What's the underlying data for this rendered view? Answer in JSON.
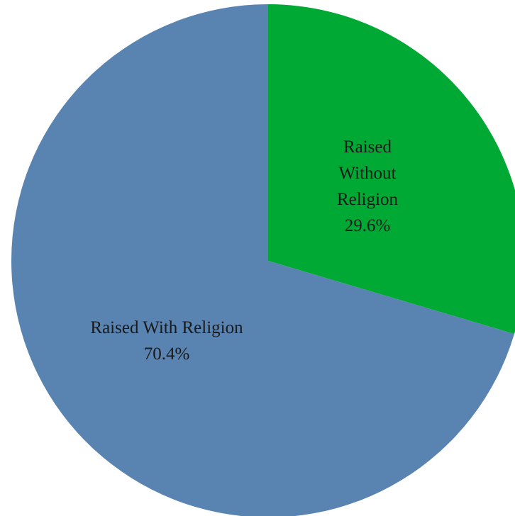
{
  "chart_data": {
    "type": "pie",
    "title": "",
    "slices": [
      {
        "label_lines": [
          "Raised",
          "Without",
          "Religion"
        ],
        "percent_label": "29.6%",
        "value": 29.6,
        "color": "#00a934"
      },
      {
        "label_lines": [
          "Raised With Religion"
        ],
        "percent_label": "70.4%",
        "value": 70.4,
        "color": "#5983b0"
      }
    ],
    "start_angle": "12 o'clock",
    "direction": "clockwise",
    "legend": "none"
  }
}
